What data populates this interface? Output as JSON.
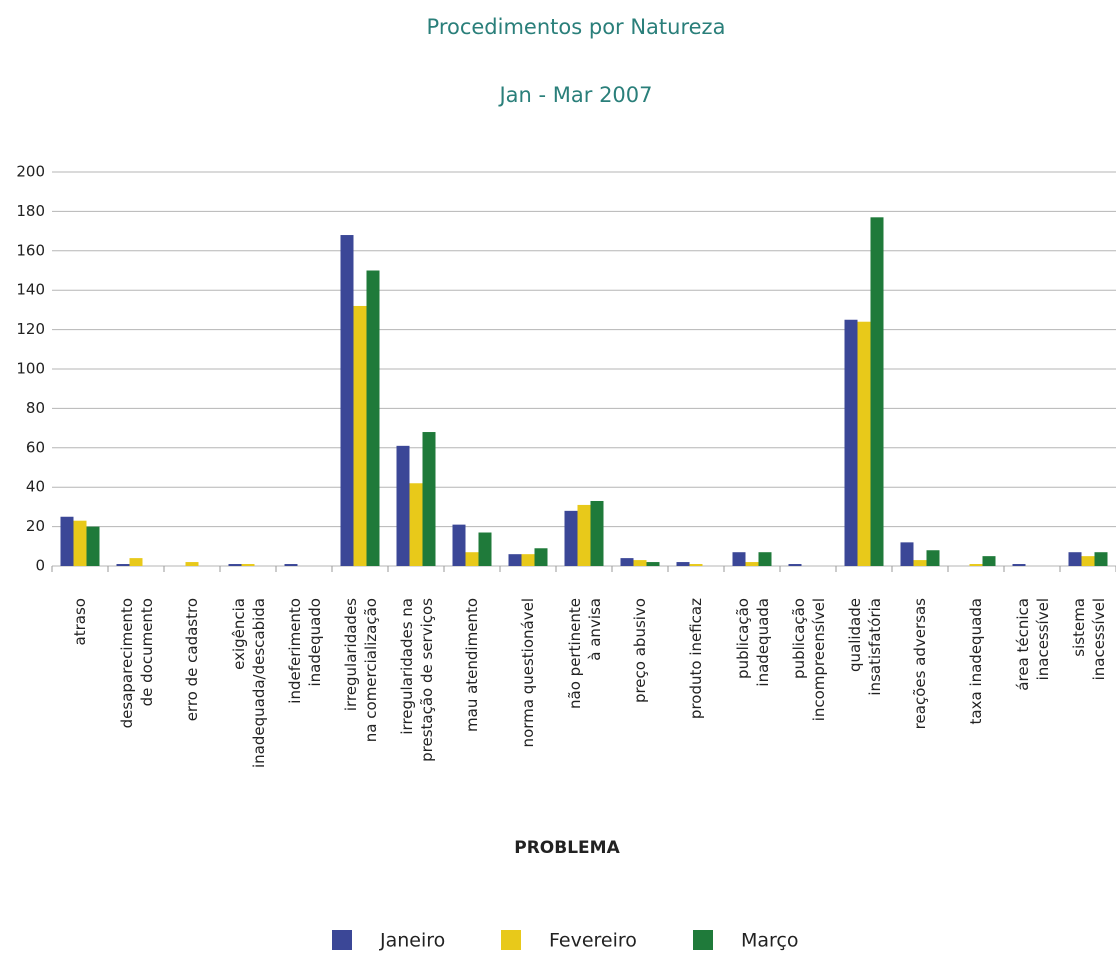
{
  "chart_data": {
    "type": "bar",
    "title": "Procedimentos por Natureza",
    "subtitle": "Jan - Mar 2007",
    "x_label": "PROBLEMA",
    "categories": [
      "atraso",
      "desaparecimento de documento",
      "erro de cadastro",
      "exigência inadequada/descabida",
      "indeferimento inadequado",
      "irregularidades na comercialização",
      "irregularidades na prestação de serviços",
      "mau atendimento",
      "norma questionável",
      "não pertinente à anvisa",
      "preço abusivo",
      "produto ineficaz",
      "publicação inadequada",
      "publicação incompreensível",
      "qualidade insatisfatória",
      "reações adversas",
      "taxa inadequada",
      "área técnica inacessível",
      "sistema inacessível"
    ],
    "series": [
      {
        "name": "Janeiro",
        "color": "#3b4797",
        "values": [
          25,
          1,
          0,
          1,
          1,
          168,
          61,
          21,
          6,
          28,
          4,
          2,
          7,
          1,
          125,
          12,
          0,
          1,
          7
        ]
      },
      {
        "name": "Fevereiro",
        "color": "#e8c91a",
        "values": [
          23,
          4,
          2,
          1,
          0,
          132,
          42,
          7,
          6,
          31,
          3,
          1,
          2,
          0,
          124,
          3,
          1,
          0,
          5
        ]
      },
      {
        "name": "Março",
        "color": "#1f7a3a",
        "values": [
          20,
          0,
          0,
          0,
          0,
          150,
          68,
          17,
          9,
          33,
          2,
          0,
          7,
          0,
          177,
          8,
          5,
          0,
          7
        ]
      }
    ],
    "ylim": [
      0,
      200
    ],
    "yticks": [
      0,
      20,
      40,
      60,
      80,
      100,
      120,
      140,
      160,
      180,
      200
    ],
    "grid": true,
    "legend": "bottom"
  }
}
